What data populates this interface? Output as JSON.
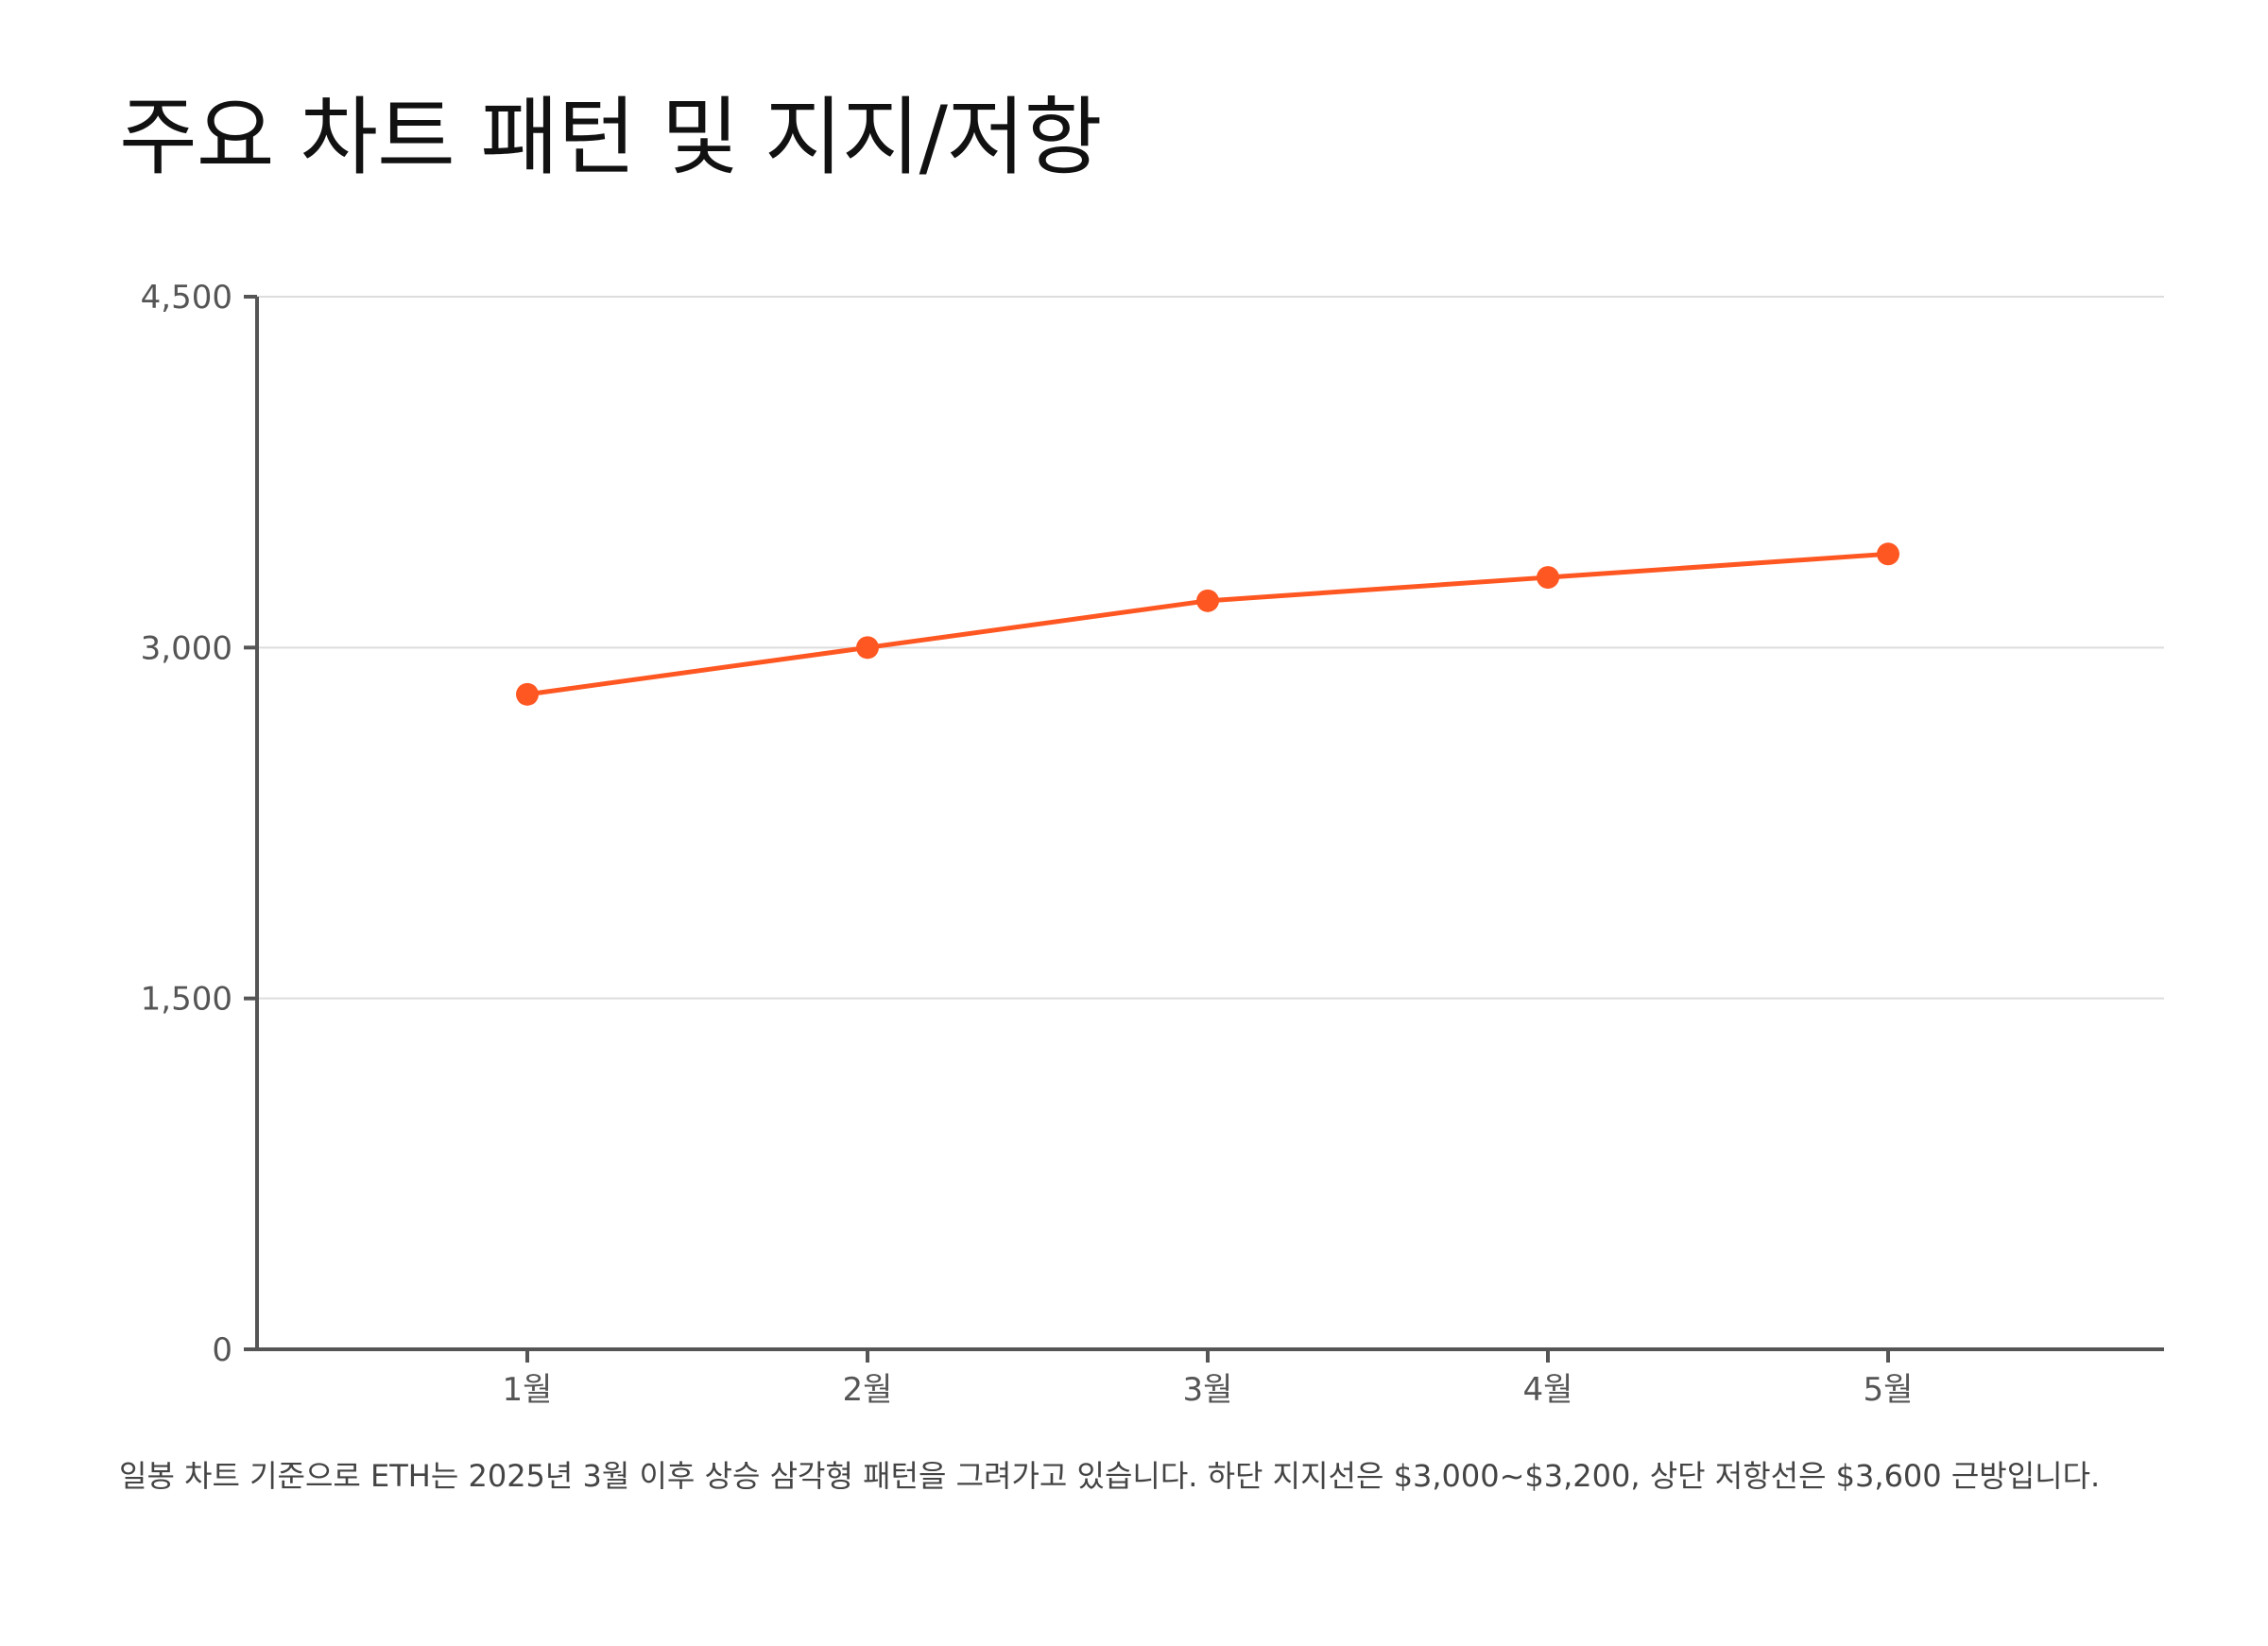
{
  "chart_data": {
    "type": "line",
    "title": "주요 차트 패턴 및 지지/저항",
    "categories": [
      "1월",
      "2월",
      "3월",
      "4월",
      "5월"
    ],
    "series": [
      {
        "values": [
          2800,
          3000,
          3200,
          3300,
          3400
        ],
        "color": "#ff5722"
      }
    ],
    "ylim": [
      0,
      4500
    ],
    "yticks": [
      0,
      1500,
      3000,
      4500
    ],
    "ytick_labels": [
      "0",
      "1,500",
      "3,000",
      "4,500"
    ],
    "grid": true,
    "xlabel": "",
    "ylabel": "",
    "caption": "일봉 차트 기준으로 ETH는 2025년 3월 이후 상승 삼각형 패턴을 그려가고 있습니다. 하단 지지선은 $3,000~$3,200, 상단 저항선은 $3,600 근방입니다."
  },
  "colors": {
    "line": "#ff5722",
    "axis": "#555555",
    "grid": "#dddddd",
    "tick_text": "#555555"
  }
}
